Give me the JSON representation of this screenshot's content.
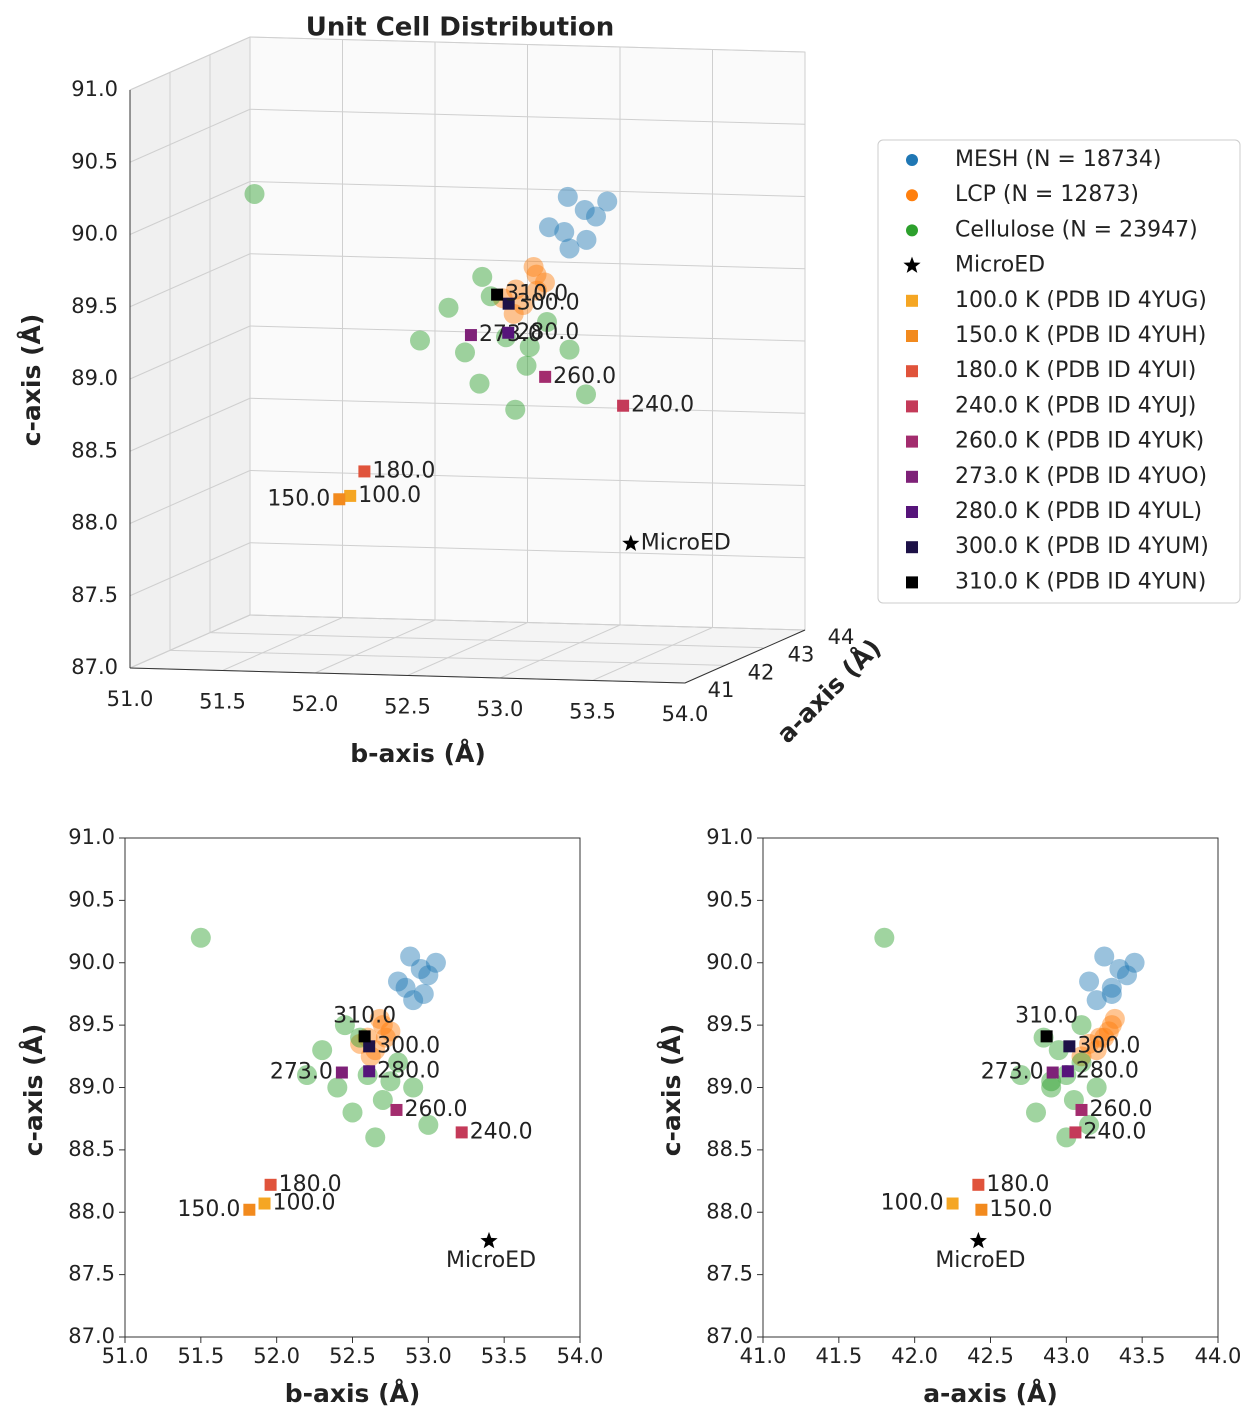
{
  "chart_data": [
    {
      "type": "scatter3d",
      "title": "Unit Cell Distribution",
      "xlabel": "b-axis (Å)",
      "ylabel": "c-axis (Å)",
      "zlabel": "a-axis (Å)",
      "xlim": [
        51,
        54
      ],
      "ylim": [
        87,
        91
      ],
      "zlim": [
        41,
        44
      ],
      "xticks": [
        {
          "value": 51,
          "label": "51.0"
        },
        {
          "value": 51.5,
          "label": "51.5"
        },
        {
          "value": 52,
          "label": "52.0"
        },
        {
          "value": 52.5,
          "label": "52.5"
        },
        {
          "value": 53,
          "label": "53.0"
        },
        {
          "value": 53.5,
          "label": "53.5"
        },
        {
          "value": 54,
          "label": "54.0"
        }
      ],
      "yticks": [
        {
          "value": 87,
          "label": "87.0"
        },
        {
          "value": 87.5,
          "label": "87.5"
        },
        {
          "value": 88,
          "label": "88.0"
        },
        {
          "value": 88.5,
          "label": "88.5"
        },
        {
          "value": 89,
          "label": "89.0"
        },
        {
          "value": 89.5,
          "label": "89.5"
        },
        {
          "value": 90,
          "label": "90.0"
        },
        {
          "value": 90.5,
          "label": "90.5"
        },
        {
          "value": 91,
          "label": "91.0"
        }
      ],
      "zticks": [
        41,
        42,
        43,
        44
      ],
      "grid": true,
      "legend": "right",
      "series": [
        {
          "name": "MESH (N = 18734)",
          "color": "#1f77b4",
          "marker": "circle",
          "x": [
            52.85,
            52.95,
            52.9,
            53.0,
            52.88,
            52.97,
            52.8,
            53.05
          ],
          "y": [
            89.8,
            89.95,
            89.7,
            89.9,
            90.05,
            89.75,
            89.85,
            90.0
          ],
          "z": [
            43.3,
            43.35,
            43.2,
            43.4,
            43.25,
            43.3,
            43.15,
            43.45
          ]
        },
        {
          "name": "LCP (N = 12873)",
          "color": "#ff7f0e",
          "marker": "circle",
          "x": [
            52.6,
            52.7,
            52.65,
            52.55,
            52.75,
            52.68,
            52.62,
            52.72
          ],
          "y": [
            89.4,
            89.5,
            89.3,
            89.35,
            89.45,
            89.55,
            89.25,
            89.4
          ],
          "z": [
            43.25,
            43.3,
            43.2,
            43.15,
            43.28,
            43.32,
            43.1,
            43.22
          ]
        },
        {
          "name": "Cellulose (N = 23947)",
          "color": "#2ca02c",
          "marker": "circle",
          "x": [
            52.6,
            52.4,
            52.8,
            52.5,
            52.7,
            52.3,
            52.9,
            52.55,
            52.65,
            52.2,
            53.0,
            52.45,
            52.75,
            51.5
          ],
          "y": [
            89.1,
            89.0,
            89.2,
            88.8,
            88.9,
            89.3,
            89.0,
            89.4,
            88.6,
            89.1,
            88.7,
            89.5,
            89.05,
            90.2
          ],
          "z": [
            43.0,
            42.9,
            43.1,
            42.8,
            43.05,
            42.95,
            43.2,
            42.85,
            43.0,
            42.7,
            43.15,
            43.1,
            42.9,
            41.8
          ]
        },
        {
          "name": "MicroED",
          "color": "#000000",
          "marker": "star",
          "label": "MicroED",
          "x": [
            53.4
          ],
          "y": [
            87.77
          ],
          "z": [
            42.42
          ]
        },
        {
          "name": "100.0 K (PDB ID 4YUG)",
          "color": "#f5a623",
          "marker": "square",
          "label": "100.0",
          "x": [
            51.92
          ],
          "y": [
            88.07
          ],
          "z": [
            42.25
          ]
        },
        {
          "name": "150.0 K (PDB ID 4YUH)",
          "color": "#f28a1e",
          "marker": "square",
          "label": "150.0",
          "x": [
            51.82
          ],
          "y": [
            88.02
          ],
          "z": [
            42.44
          ]
        },
        {
          "name": "180.0 K (PDB ID 4YUI)",
          "color": "#e0533b",
          "marker": "square",
          "label": "180.0",
          "x": [
            51.96
          ],
          "y": [
            88.22
          ],
          "z": [
            42.42
          ]
        },
        {
          "name": "240.0 K (PDB ID 4YUJ)",
          "color": "#c43a59",
          "marker": "square",
          "label": "240.0",
          "x": [
            53.22
          ],
          "y": [
            88.64
          ],
          "z": [
            43.06
          ]
        },
        {
          "name": "260.0 K (PDB ID 4YUK)",
          "color": "#a32c6e",
          "marker": "square",
          "label": "260.0",
          "x": [
            52.79
          ],
          "y": [
            88.82
          ],
          "z": [
            43.1
          ]
        },
        {
          "name": "273.0 K (PDB ID 4YUO)",
          "color": "#7e2178",
          "marker": "square",
          "label": "273.0",
          "x": [
            52.43
          ],
          "y": [
            89.12
          ],
          "z": [
            42.91
          ]
        },
        {
          "name": "280.0 K (PDB ID 4YUL)",
          "color": "#56147a",
          "marker": "square",
          "label": "280.0",
          "x": [
            52.61
          ],
          "y": [
            89.13
          ],
          "z": [
            43.01
          ]
        },
        {
          "name": "300.0 K (PDB ID 4YUM)",
          "color": "#1d1147",
          "marker": "square",
          "label": "300.0",
          "x": [
            52.61
          ],
          "y": [
            89.33
          ],
          "z": [
            43.02
          ]
        },
        {
          "name": "310.0 K (PDB ID 4YUN)",
          "color": "#000000",
          "marker": "square",
          "label": "310.0",
          "x": [
            52.58
          ],
          "y": [
            89.41
          ],
          "z": [
            42.87
          ]
        }
      ]
    },
    {
      "type": "scatter",
      "xlabel": "b-axis (Å)",
      "ylabel": "c-axis (Å)",
      "xlim": [
        51,
        54
      ],
      "ylim": [
        87,
        91
      ],
      "xticks": [
        {
          "value": 51,
          "label": "51.0"
        },
        {
          "value": 51.5,
          "label": "51.5"
        },
        {
          "value": 52,
          "label": "52.0"
        },
        {
          "value": 52.5,
          "label": "52.5"
        },
        {
          "value": 53,
          "label": "53.0"
        },
        {
          "value": 53.5,
          "label": "53.5"
        },
        {
          "value": 54,
          "label": "54.0"
        }
      ],
      "yticks": [
        {
          "value": 87,
          "label": "87.0"
        },
        {
          "value": 87.5,
          "label": "87.5"
        },
        {
          "value": 88,
          "label": "88.0"
        },
        {
          "value": 88.5,
          "label": "88.5"
        },
        {
          "value": 89,
          "label": "89.0"
        },
        {
          "value": 89.5,
          "label": "89.5"
        },
        {
          "value": 90,
          "label": "90.0"
        },
        {
          "value": 90.5,
          "label": "90.5"
        },
        {
          "value": 91,
          "label": "91.0"
        }
      ],
      "series": [
        {
          "x": [
            52.85,
            52.95,
            52.9,
            53.0,
            52.88,
            52.97,
            52.8,
            53.05
          ],
          "y": [
            89.8,
            89.95,
            89.7,
            89.9,
            90.05,
            89.75,
            89.85,
            90.0
          ]
        },
        {
          "x": [
            52.6,
            52.7,
            52.65,
            52.55,
            52.75,
            52.68,
            52.62,
            52.72
          ],
          "y": [
            89.4,
            89.5,
            89.3,
            89.35,
            89.45,
            89.55,
            89.25,
            89.4
          ]
        },
        {
          "x": [
            52.6,
            52.4,
            52.8,
            52.5,
            52.7,
            52.3,
            52.9,
            52.55,
            52.65,
            52.2,
            53.0,
            52.45,
            52.75,
            51.5
          ],
          "y": [
            89.1,
            89.0,
            89.2,
            88.8,
            88.9,
            89.3,
            89.0,
            89.4,
            88.6,
            89.1,
            88.7,
            89.5,
            89.05,
            90.2
          ]
        },
        {
          "label": "MicroED",
          "x": [
            53.4
          ],
          "y": [
            87.77
          ]
        },
        {
          "label": "100.0",
          "x": [
            51.92
          ],
          "y": [
            88.07
          ]
        },
        {
          "label": "150.0",
          "x": [
            51.82
          ],
          "y": [
            88.02
          ]
        },
        {
          "label": "180.0",
          "x": [
            51.96
          ],
          "y": [
            88.22
          ]
        },
        {
          "label": "240.0",
          "x": [
            53.22
          ],
          "y": [
            88.64
          ]
        },
        {
          "label": "260.0",
          "x": [
            52.79
          ],
          "y": [
            88.82
          ]
        },
        {
          "label": "273.0",
          "x": [
            52.43
          ],
          "y": [
            89.12
          ]
        },
        {
          "label": "280.0",
          "x": [
            52.61
          ],
          "y": [
            89.13
          ]
        },
        {
          "label": "300.0",
          "x": [
            52.61
          ],
          "y": [
            89.33
          ]
        },
        {
          "label": "310.0",
          "x": [
            52.58
          ],
          "y": [
            89.41
          ]
        }
      ]
    },
    {
      "type": "scatter",
      "xlabel": "a-axis (Å)",
      "ylabel": "c-axis (Å)",
      "xlim": [
        41,
        44
      ],
      "ylim": [
        87,
        91
      ],
      "xticks": [
        {
          "value": 41,
          "label": "41.0"
        },
        {
          "value": 41.5,
          "label": "41.5"
        },
        {
          "value": 42,
          "label": "42.0"
        },
        {
          "value": 42.5,
          "label": "42.5"
        },
        {
          "value": 43,
          "label": "43.0"
        },
        {
          "value": 43.5,
          "label": "43.5"
        },
        {
          "value": 44,
          "label": "44.0"
        }
      ],
      "yticks": [
        {
          "value": 87,
          "label": "87.0"
        },
        {
          "value": 87.5,
          "label": "87.5"
        },
        {
          "value": 88,
          "label": "88.0"
        },
        {
          "value": 88.5,
          "label": "88.5"
        },
        {
          "value": 89,
          "label": "89.0"
        },
        {
          "value": 89.5,
          "label": "89.5"
        },
        {
          "value": 90,
          "label": "90.0"
        },
        {
          "value": 90.5,
          "label": "90.5"
        },
        {
          "value": 91,
          "label": "91.0"
        }
      ],
      "series": [
        {
          "x": [
            43.3,
            43.35,
            43.2,
            43.4,
            43.25,
            43.3,
            43.15,
            43.45
          ],
          "y": [
            89.8,
            89.95,
            89.7,
            89.9,
            90.05,
            89.75,
            89.85,
            90.0
          ]
        },
        {
          "x": [
            43.25,
            43.3,
            43.2,
            43.15,
            43.28,
            43.32,
            43.1,
            43.22
          ],
          "y": [
            89.4,
            89.5,
            89.3,
            89.35,
            89.45,
            89.55,
            89.25,
            89.4
          ]
        },
        {
          "x": [
            43.0,
            42.9,
            43.1,
            42.8,
            43.05,
            42.95,
            43.2,
            42.85,
            43.0,
            42.7,
            43.15,
            43.1,
            42.9,
            41.8
          ],
          "y": [
            89.1,
            89.0,
            89.2,
            88.8,
            88.9,
            89.3,
            89.0,
            89.4,
            88.6,
            89.1,
            88.7,
            89.5,
            89.05,
            90.2
          ]
        },
        {
          "label": "MicroED",
          "x": [
            42.42
          ],
          "y": [
            87.77
          ]
        },
        {
          "label": "100.0",
          "x": [
            42.25
          ],
          "y": [
            88.07
          ]
        },
        {
          "label": "150.0",
          "x": [
            42.44
          ],
          "y": [
            88.02
          ]
        },
        {
          "label": "180.0",
          "x": [
            42.42
          ],
          "y": [
            88.22
          ]
        },
        {
          "label": "240.0",
          "x": [
            43.06
          ],
          "y": [
            88.64
          ]
        },
        {
          "label": "260.0",
          "x": [
            43.1
          ],
          "y": [
            88.82
          ]
        },
        {
          "label": "273.0",
          "x": [
            42.91
          ],
          "y": [
            89.12
          ]
        },
        {
          "label": "280.0",
          "x": [
            43.01
          ],
          "y": [
            89.13
          ]
        },
        {
          "label": "300.0",
          "x": [
            43.02
          ],
          "y": [
            89.33
          ]
        },
        {
          "label": "310.0",
          "x": [
            42.87
          ],
          "y": [
            89.41
          ]
        }
      ]
    }
  ]
}
